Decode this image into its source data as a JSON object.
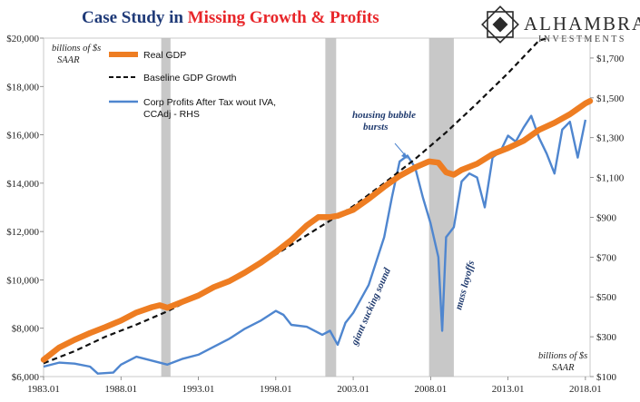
{
  "title": {
    "part1": "Case Study in ",
    "part2": "Missing Growth & Profits"
  },
  "logo": {
    "name": "ALHAMBRA",
    "sub": "INVESTMENTS"
  },
  "notes": {
    "left_unit": [
      "billions of $s",
      "SAAR"
    ],
    "right_unit": [
      "billions of $s",
      "SAAR"
    ]
  },
  "annotations": {
    "housing": [
      "housing bubble",
      "bursts"
    ],
    "giant": "giant sucking sound",
    "layoffs": "mass layoffs"
  },
  "colors": {
    "gdp": "#ee7d22",
    "baseline": "#111111",
    "profits": "#4f86cf",
    "recession": "#c8c8c8"
  },
  "chart_data": {
    "type": "line",
    "x_range": [
      1983.0,
      2018.3
    ],
    "x_ticks": [
      {
        "x": 1983.0,
        "label": "1983.01"
      },
      {
        "x": 1988.0,
        "label": "1988.01"
      },
      {
        "x": 1993.0,
        "label": "1993.01"
      },
      {
        "x": 1998.0,
        "label": "1998.01"
      },
      {
        "x": 2003.0,
        "label": "2003.01"
      },
      {
        "x": 2008.0,
        "label": "2008.01"
      },
      {
        "x": 2013.0,
        "label": "2013.01"
      },
      {
        "x": 2018.0,
        "label": "2018.01"
      }
    ],
    "y_left": {
      "range": [
        6000,
        20000
      ],
      "step": 2000,
      "tick_labels": [
        "$6,000",
        "$8,000",
        "$10,000",
        "$12,000",
        "$14,000",
        "$16,000",
        "$18,000",
        "$20,000"
      ]
    },
    "y_right": {
      "range": [
        100,
        1800
      ],
      "step": 200,
      "tick_labels": [
        "$100",
        "$300",
        "$500",
        "$700",
        "$900",
        "$1,100",
        "$1,300",
        "$1,500",
        "$1,700"
      ]
    },
    "recessions": [
      [
        1990.6,
        1991.2
      ],
      [
        2001.2,
        2001.9
      ],
      [
        2007.9,
        2009.5
      ]
    ],
    "series": [
      {
        "name": "Real GDP",
        "axis": "left",
        "style": "thick",
        "points": [
          [
            1983.0,
            6700
          ],
          [
            1984.0,
            7200
          ],
          [
            1985.0,
            7520
          ],
          [
            1986.0,
            7800
          ],
          [
            1987.0,
            8050
          ],
          [
            1988.0,
            8320
          ],
          [
            1989.0,
            8650
          ],
          [
            1990.0,
            8870
          ],
          [
            1990.5,
            8950
          ],
          [
            1991.0,
            8850
          ],
          [
            1992.0,
            9100
          ],
          [
            1993.0,
            9350
          ],
          [
            1994.0,
            9700
          ],
          [
            1995.0,
            9950
          ],
          [
            1996.0,
            10300
          ],
          [
            1997.0,
            10700
          ],
          [
            1998.0,
            11150
          ],
          [
            1999.0,
            11650
          ],
          [
            2000.0,
            12250
          ],
          [
            2000.75,
            12600
          ],
          [
            2001.5,
            12600
          ],
          [
            2002.0,
            12650
          ],
          [
            2003.0,
            12900
          ],
          [
            2004.0,
            13350
          ],
          [
            2005.0,
            13850
          ],
          [
            2006.0,
            14300
          ],
          [
            2007.0,
            14650
          ],
          [
            2007.9,
            14900
          ],
          [
            2008.5,
            14850
          ],
          [
            2009.0,
            14450
          ],
          [
            2009.5,
            14350
          ],
          [
            2010.0,
            14550
          ],
          [
            2011.0,
            14800
          ],
          [
            2012.0,
            15200
          ],
          [
            2013.0,
            15450
          ],
          [
            2014.0,
            15750
          ],
          [
            2015.0,
            16200
          ],
          [
            2016.0,
            16500
          ],
          [
            2017.0,
            16850
          ],
          [
            2018.0,
            17300
          ],
          [
            2018.3,
            17400
          ]
        ]
      },
      {
        "name": "Baseline GDP Growth",
        "axis": "left",
        "style": "dashed",
        "points": [
          [
            1983.0,
            6550
          ],
          [
            1985.0,
            7050
          ],
          [
            1987.0,
            7650
          ],
          [
            1989.0,
            8150
          ],
          [
            1991.0,
            8700
          ],
          [
            1993.0,
            9350
          ],
          [
            1995.0,
            9950
          ],
          [
            1997.0,
            10650
          ],
          [
            1999.0,
            11450
          ],
          [
            2001.0,
            12250
          ],
          [
            2003.0,
            13050
          ],
          [
            2005.0,
            14000
          ],
          [
            2007.0,
            15000
          ],
          [
            2009.0,
            16100
          ],
          [
            2011.0,
            17300
          ],
          [
            2013.0,
            18550
          ],
          [
            2015.0,
            19900
          ],
          [
            2015.6,
            20000
          ]
        ]
      },
      {
        "name": "Corp Profits After Tax wout IVA, CCAdj - RHS",
        "axis": "right",
        "style": "thin",
        "points": [
          [
            1983.0,
            150
          ],
          [
            1984.0,
            170
          ],
          [
            1985.0,
            165
          ],
          [
            1986.0,
            150
          ],
          [
            1986.5,
            115
          ],
          [
            1987.5,
            120
          ],
          [
            1988.0,
            160
          ],
          [
            1989.0,
            200
          ],
          [
            1990.0,
            180
          ],
          [
            1991.0,
            160
          ],
          [
            1992.0,
            190
          ],
          [
            1993.0,
            210
          ],
          [
            1994.0,
            250
          ],
          [
            1995.0,
            290
          ],
          [
            1996.0,
            340
          ],
          [
            1997.0,
            380
          ],
          [
            1998.0,
            430
          ],
          [
            1998.5,
            410
          ],
          [
            1999.0,
            360
          ],
          [
            2000.0,
            350
          ],
          [
            2001.0,
            310
          ],
          [
            2001.5,
            330
          ],
          [
            2002.0,
            260
          ],
          [
            2002.5,
            370
          ],
          [
            2003.0,
            420
          ],
          [
            2004.0,
            560
          ],
          [
            2005.0,
            800
          ],
          [
            2005.5,
            1000
          ],
          [
            2006.0,
            1180
          ],
          [
            2006.5,
            1210
          ],
          [
            2007.0,
            1150
          ],
          [
            2007.5,
            1000
          ],
          [
            2008.0,
            870
          ],
          [
            2008.5,
            700
          ],
          [
            2008.75,
            330
          ],
          [
            2009.0,
            800
          ],
          [
            2009.5,
            850
          ],
          [
            2010.0,
            1080
          ],
          [
            2010.5,
            1120
          ],
          [
            2011.0,
            1100
          ],
          [
            2011.5,
            950
          ],
          [
            2012.0,
            1200
          ],
          [
            2012.5,
            1230
          ],
          [
            2013.0,
            1310
          ],
          [
            2013.5,
            1280
          ],
          [
            2014.0,
            1350
          ],
          [
            2014.5,
            1410
          ],
          [
            2015.0,
            1300
          ],
          [
            2015.5,
            1220
          ],
          [
            2016.0,
            1120
          ],
          [
            2016.5,
            1340
          ],
          [
            2017.0,
            1380
          ],
          [
            2017.5,
            1200
          ],
          [
            2018.0,
            1390
          ]
        ]
      }
    ]
  }
}
